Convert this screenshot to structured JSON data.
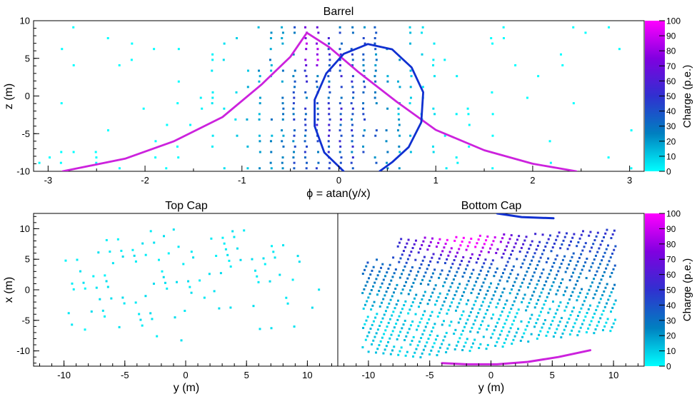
{
  "chart_data": [
    {
      "id": "barrel",
      "type": "heatmap",
      "title": "Barrel",
      "xlabel": "ϕ = atan(y/x)",
      "ylabel": "z (m)",
      "xlim": [
        -3.15,
        3.15
      ],
      "ylim": [
        -10,
        10
      ],
      "xticks": [
        -3,
        -2,
        -1,
        0,
        1,
        2,
        3
      ],
      "yticks": [
        10,
        5,
        0,
        -5,
        -10
      ],
      "colorbar": {
        "label": "Charge (p.e.)",
        "min": 0,
        "max": 100,
        "ticks": [
          100,
          90,
          80,
          70,
          60,
          50,
          40,
          30,
          20,
          10,
          0
        ],
        "colors": [
          "#00ffff",
          "#0080c0",
          "#3030d0",
          "#8000e0",
          "#ff00ff"
        ]
      },
      "overlays": [
        {
          "name": "magenta-ring",
          "color": "#cc22dd",
          "points": [
            [
              -2.85,
              -10
            ],
            [
              -2.2,
              -8.3
            ],
            [
              -1.7,
              -6.0
            ],
            [
              -1.2,
              -2.8
            ],
            [
              -0.8,
              1.5
            ],
            [
              -0.5,
              5.2
            ],
            [
              -0.33,
              8.4
            ],
            [
              -0.1,
              6.5
            ],
            [
              0.2,
              3.2
            ],
            [
              0.6,
              -0.8
            ],
            [
              1.0,
              -4.5
            ],
            [
              1.5,
              -7.2
            ],
            [
              2.0,
              -9.0
            ],
            [
              2.45,
              -10
            ]
          ]
        },
        {
          "name": "blue-ring",
          "color": "#1030d0",
          "points": [
            [
              0.05,
              -10
            ],
            [
              -0.15,
              -7.5
            ],
            [
              -0.25,
              -4.0
            ],
            [
              -0.25,
              -0.5
            ],
            [
              -0.13,
              3.0
            ],
            [
              0.05,
              5.6
            ],
            [
              0.3,
              6.9
            ],
            [
              0.55,
              6.2
            ],
            [
              0.75,
              3.8
            ],
            [
              0.87,
              0.5
            ],
            [
              0.85,
              -3.5
            ],
            [
              0.72,
              -6.8
            ],
            [
              0.55,
              -8.8
            ],
            [
              0.42,
              -10
            ]
          ]
        }
      ]
    },
    {
      "id": "top-cap",
      "type": "heatmap",
      "title": "Top Cap",
      "xlabel": "y (m)",
      "ylabel": "x (m)",
      "xlim": [
        -12.5,
        12.5
      ],
      "ylim": [
        -12.5,
        12.5
      ],
      "xticks": [
        -10,
        -5,
        0,
        5,
        10
      ],
      "yticks": [
        10,
        5,
        0,
        -5,
        -10
      ]
    },
    {
      "id": "bottom-cap",
      "type": "heatmap",
      "title": "Bottom Cap",
      "xlabel": "y (m)",
      "ylabel": "",
      "xlim": [
        -12.5,
        12.5
      ],
      "ylim": [
        -12.5,
        12.5
      ],
      "xticks": [
        -10,
        -5,
        0,
        5,
        10
      ],
      "colorbar": {
        "label": "Charge (p.e.)",
        "min": 0,
        "max": 100,
        "ticks": [
          100,
          90,
          80,
          70,
          60,
          50,
          40,
          30,
          20,
          10,
          0
        ],
        "colors": [
          "#00ffff",
          "#0080c0",
          "#3030d0",
          "#8000e0",
          "#ff00ff"
        ]
      },
      "overlays": [
        {
          "name": "blue-arc",
          "color": "#1030d0",
          "points": [
            [
              0.5,
              12.5
            ],
            [
              2.5,
              11.9
            ],
            [
              5.1,
              11.7
            ]
          ]
        },
        {
          "name": "magenta-arc",
          "color": "#cc22dd",
          "points": [
            [
              -4.0,
              -12.0
            ],
            [
              -2.0,
              -12.2
            ],
            [
              0.5,
              -12.2
            ],
            [
              3.0,
              -11.8
            ],
            [
              5.5,
              -11.0
            ],
            [
              8.1,
              -9.9
            ]
          ]
        }
      ]
    }
  ]
}
